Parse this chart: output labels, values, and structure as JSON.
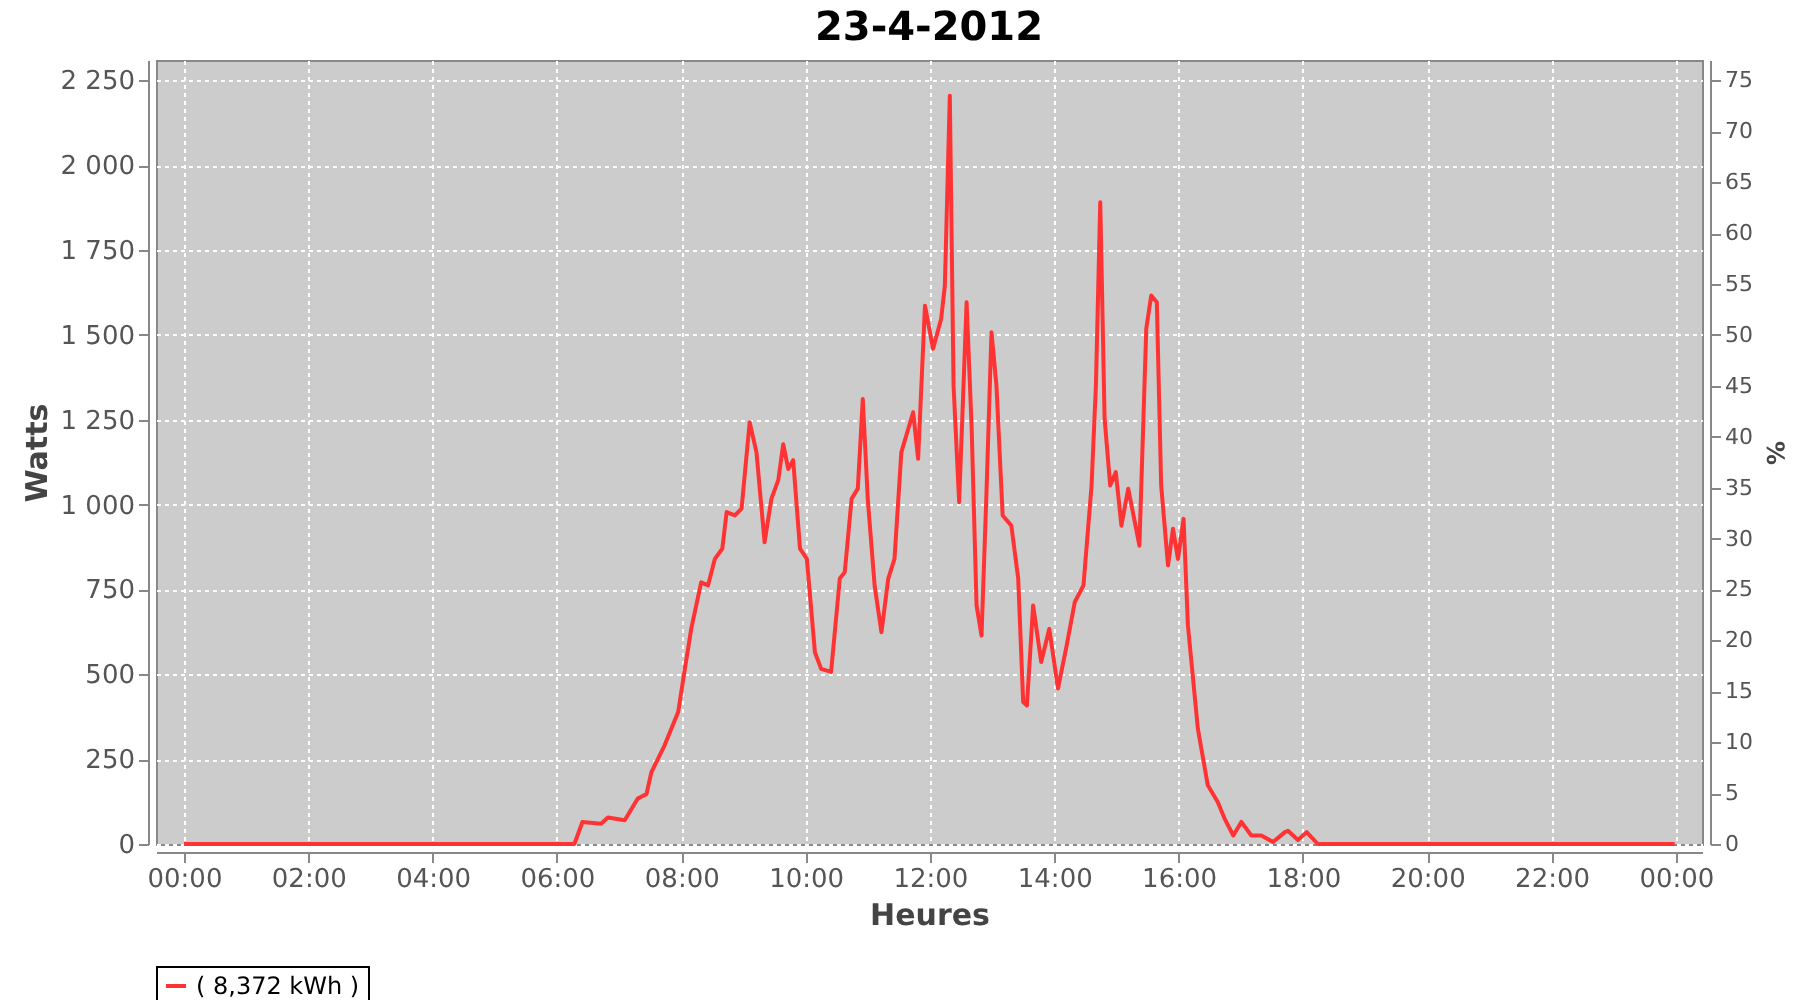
{
  "chart_data": {
    "type": "line",
    "title": "23-4-2012",
    "xlabel": "Heures",
    "ylabel": "Watts",
    "y2label": "%",
    "x": [
      0,
      6.2,
      6.28,
      6.41,
      6.71,
      6.82,
      7.09,
      7.3,
      7.44,
      7.52,
      7.73,
      7.95,
      8.05,
      8.16,
      8.32,
      8.43,
      8.54,
      8.66,
      8.73,
      8.86,
      8.97,
      9.1,
      9.21,
      9.34,
      9.45,
      9.56,
      9.64,
      9.72,
      9.8,
      9.91,
      10.02,
      10.15,
      10.25,
      10.41,
      10.55,
      10.63,
      10.74,
      10.84,
      10.92,
      11.0,
      11.11,
      11.22,
      11.33,
      11.43,
      11.54,
      11.73,
      11.81,
      11.92,
      12.05,
      12.18,
      12.24,
      12.32,
      12.38,
      12.47,
      12.59,
      12.67,
      12.75,
      12.83,
      12.91,
      12.99,
      13.07,
      13.17,
      13.31,
      13.42,
      13.5,
      13.56,
      13.66,
      13.79,
      13.92,
      14.06,
      14.2,
      14.33,
      14.47,
      14.6,
      14.67,
      14.74,
      14.81,
      14.9,
      14.99,
      15.08,
      15.19,
      15.37,
      15.48,
      15.56,
      15.65,
      15.72,
      15.83,
      15.91,
      15.99,
      16.08,
      16.15,
      16.31,
      16.47,
      16.63,
      16.74,
      16.88,
      17.01,
      17.17,
      17.33,
      17.52,
      17.71,
      17.76,
      17.92,
      18.06,
      18.24,
      23.98
    ],
    "series": [
      {
        "name": "( 8,372 kWh )",
        "color": "#ff3333",
        "values": [
          0,
          0,
          0,
          65,
          60,
          78,
          70,
          134,
          147,
          212,
          290,
          389,
          507,
          634,
          771,
          762,
          840,
          870,
          978,
          968,
          988,
          1243,
          1154,
          889,
          1017,
          1072,
          1178,
          1105,
          1131,
          870,
          840,
          565,
          516,
          507,
          782,
          801,
          1017,
          1047,
          1311,
          1017,
          762,
          624,
          782,
          840,
          1154,
          1272,
          1135,
          1586,
          1459,
          1547,
          1645,
          2205,
          1351,
          1007,
          1596,
          1233,
          703,
          614,
          1037,
          1508,
          1351,
          968,
          938,
          782,
          418,
          408,
          703,
          536,
          634,
          458,
          585,
          713,
          762,
          1056,
          1351,
          1891,
          1253,
          1056,
          1096,
          938,
          1047,
          879,
          1518,
          1616,
          1596,
          1056,
          821,
          929,
          840,
          958,
          644,
          340,
          173,
          124,
          75,
          25,
          65,
          25,
          25,
          6,
          35,
          39,
          12,
          35,
          0,
          0
        ]
      }
    ],
    "xlim": [
      -0.45,
      24.42
    ],
    "xticks": [
      {
        "value": 0,
        "label": "00:00"
      },
      {
        "value": 2,
        "label": "02:00"
      },
      {
        "value": 4,
        "label": "04:00"
      },
      {
        "value": 6,
        "label": "06:00"
      },
      {
        "value": 8,
        "label": "08:00"
      },
      {
        "value": 10,
        "label": "10:00"
      },
      {
        "value": 12,
        "label": "12:00"
      },
      {
        "value": 14,
        "label": "14:00"
      },
      {
        "value": 16,
        "label": "16:00"
      },
      {
        "value": 18,
        "label": "18:00"
      },
      {
        "value": 20,
        "label": "20:00"
      },
      {
        "value": 22,
        "label": "22:00"
      },
      {
        "value": 24,
        "label": "00:00"
      }
    ],
    "ylim": [
      0,
      2310
    ],
    "yticks": [
      0,
      250,
      500,
      750,
      {
        "value": 1000,
        "label": "1 000"
      },
      {
        "value": 1250,
        "label": "1 250"
      },
      {
        "value": 1500,
        "label": "1 500"
      },
      {
        "value": 1750,
        "label": "1 750"
      },
      {
        "value": 2000,
        "label": "2 000"
      },
      {
        "value": 2250,
        "label": "2 250"
      }
    ],
    "y2lim": [
      0,
      77
    ],
    "y2ticks": [
      0,
      5,
      10,
      15,
      20,
      25,
      30,
      35,
      40,
      45,
      50,
      55,
      60,
      65,
      70,
      75
    ],
    "grid": true,
    "legend": "bottom",
    "line_style": "solid"
  }
}
